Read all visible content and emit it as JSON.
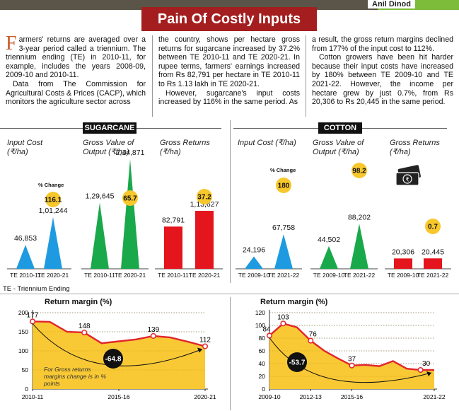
{
  "byline": "Anil Dinod",
  "headline": "Pain Of Costly Inputs",
  "article": {
    "dropcap": "F",
    "col1_p1": "armers' returns are averaged over a 3-year period called a triennium. The triennium ending (TE) in 2010-11, for example, includes the years 2008-09, 2009-10 and 2010-11.",
    "col1_p2": "Data from The Commission for Agricultural Costs & Prices (CACP), which monitors the agriculture sector across",
    "col2_p1": "the country, shows per hectare gross returns for sugarcane increased by 37.2% between TE 2010-11 and TE 2020-21. In rupee terms, farmers' earnings increased from Rs 82,791 per hectare in TE 2010-11 to Rs 1.13 lakh in TE 2020-21.",
    "col2_p2": "However, sugarcane's input costs increased by 116% in the same period. As",
    "col3_p1": "a result, the gross return margins declined from 177% of the input cost to 112%.",
    "col3_p2": "Cotton growers have been hit harder because their input costs have increased by 180% between TE 2009-10 and TE 2021-22. However, the income per hectare grew by just 0.7%, from Rs 20,306 to Rs 20,445 in the same period."
  },
  "footnote": "TE - Triennium Ending",
  "pct_change_label": "% Change",
  "colors": {
    "input": "#1e9be0",
    "output": "#19a84a",
    "returns": "#e4151d",
    "badge": "#f7c72c",
    "area": "#f9c62a",
    "line": "#e1262d",
    "headline": "#a41e1f"
  },
  "chart_data": [
    {
      "type": "bar",
      "title": "SUGARCANE",
      "panels": [
        {
          "label": "Input Cost (₹/ha)",
          "categories": [
            "TE 2010-11",
            "TE 2020-21"
          ],
          "values": [
            46853,
            101244
          ],
          "value_labels": [
            "46,853",
            "1,01,244"
          ],
          "change": "116.1",
          "shape": "triangle",
          "color": "#1e9be0"
        },
        {
          "label": "Gross Value of Output (₹/ha)",
          "categories": [
            "TE 2010-11",
            "TE 2020-21"
          ],
          "values": [
            129645,
            214871
          ],
          "value_labels": [
            "1,29,645",
            "2,14,871"
          ],
          "change": "65.7",
          "shape": "triangle",
          "color": "#19a84a"
        },
        {
          "label": "Gross Returns (₹/ha)",
          "categories": [
            "TE 2010-11",
            "TE 2020-21"
          ],
          "values": [
            82791,
            113627
          ],
          "value_labels": [
            "82,791",
            "1,13,627"
          ],
          "change": "37.2",
          "shape": "rect",
          "color": "#e4151d"
        }
      ]
    },
    {
      "type": "bar",
      "title": "COTTON",
      "panels": [
        {
          "label": "Input Cost (₹/ha)",
          "categories": [
            "TE 2009-10",
            "TE 2021-22"
          ],
          "values": [
            24196,
            67758
          ],
          "value_labels": [
            "24,196",
            "67,758"
          ],
          "change": "180",
          "shape": "triangle",
          "color": "#1e9be0"
        },
        {
          "label": "Gross Value of Output (₹/ha)",
          "categories": [
            "TE 2009-10",
            "TE 2021-22"
          ],
          "values": [
            44502,
            88202
          ],
          "value_labels": [
            "44,502",
            "88,202"
          ],
          "change": "98.2",
          "shape": "triangle",
          "color": "#19a84a"
        },
        {
          "label": "Gross Returns (₹/ha)",
          "categories": [
            "TE 2009-10",
            "TE 2021-22"
          ],
          "values": [
            20306,
            20445
          ],
          "value_labels": [
            "20,306",
            "20,445"
          ],
          "change": "0.7",
          "shape": "rect",
          "color": "#e4151d"
        }
      ]
    },
    {
      "type": "area",
      "title": "Return margin (%)",
      "x": [
        0,
        1,
        2,
        3,
        4,
        5,
        6,
        7,
        8,
        9,
        10
      ],
      "values": [
        177,
        176,
        150,
        148,
        120,
        125,
        130,
        139,
        135,
        124,
        112
      ],
      "point_labels": [
        [
          "0",
          "177"
        ],
        [
          "3",
          "148"
        ],
        [
          "7",
          "139"
        ],
        [
          "10",
          "112"
        ]
      ],
      "x_tick_labels": [
        [
          "0",
          "2010-11"
        ],
        [
          "5",
          "2015-16"
        ],
        [
          "10",
          "2020-21"
        ]
      ],
      "y_ticks": [
        0,
        50,
        100,
        150,
        200
      ],
      "ylim": [
        0,
        200
      ],
      "change_badge": "-64.8",
      "note": "For Gross returns margins change is in % points"
    },
    {
      "type": "area",
      "title": "Return margin (%)",
      "x": [
        0,
        1,
        2,
        3,
        4,
        5,
        6,
        7,
        8,
        9,
        10,
        11,
        12
      ],
      "values": [
        84,
        103,
        97,
        76,
        60,
        48,
        37,
        38,
        36,
        44,
        32,
        30,
        30
      ],
      "point_labels": [
        [
          "0",
          "84"
        ],
        [
          "1",
          "103"
        ],
        [
          "3",
          "76"
        ],
        [
          "6",
          "37"
        ],
        [
          "11",
          "30"
        ]
      ],
      "x_tick_labels": [
        [
          "0",
          "2009-10"
        ],
        [
          "3",
          "2012-13"
        ],
        [
          "6",
          "2015-16"
        ],
        [
          "12",
          "2021-22"
        ]
      ],
      "y_ticks": [
        0,
        20,
        40,
        60,
        80,
        100,
        120
      ],
      "ylim": [
        0,
        120
      ],
      "change_badge": "-53.7",
      "note": ""
    }
  ]
}
